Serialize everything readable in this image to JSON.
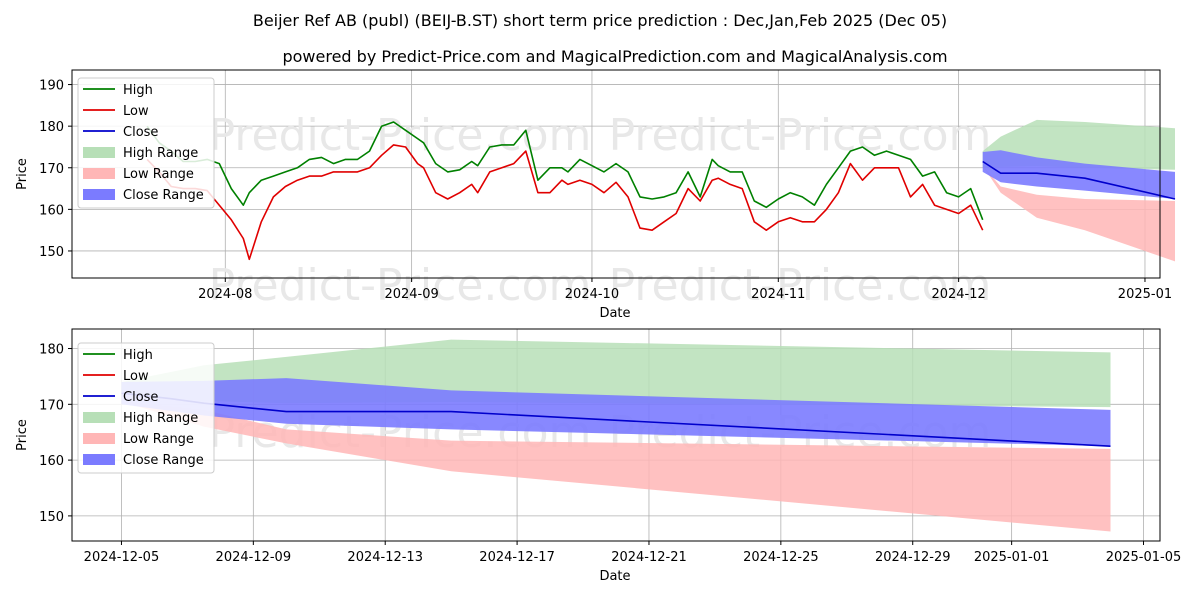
{
  "title": "Beijer Ref AB (publ) (BEIJ-B.ST) short term price prediction : Dec,Jan,Feb 2025 (Dec 05)",
  "subtitle": "powered by Predict-Price.com and MagicalPrediction.com and MagicalAnalysis.com",
  "watermark": "Predict-Price.com",
  "colors": {
    "high": "#008000",
    "low": "#e00000",
    "close": "#0000cc",
    "high_range": "#b7dfb7",
    "low_range": "#ffb6b6",
    "close_range": "#7b7bff"
  },
  "chart_data": [
    {
      "type": "line",
      "title": "Beijer Ref AB (publ) (BEIJ-B.ST) short term price prediction : Dec,Jan,Feb 2025 (Dec 05)",
      "xlabel": "Date",
      "ylabel": "Price",
      "xlim": [
        -25.5,
        155.5
      ],
      "ylim": [
        143.5,
        193.5
      ],
      "x_unit": "days since 2024-08-01",
      "xticks": [
        {
          "x": 0,
          "label": "2024-08"
        },
        {
          "x": 31,
          "label": "2024-09"
        },
        {
          "x": 61,
          "label": "2024-10"
        },
        {
          "x": 92,
          "label": "2024-11"
        },
        {
          "x": 122,
          "label": "2024-12"
        },
        {
          "x": 153,
          "label": "2025-01"
        }
      ],
      "yticks": [
        150,
        160,
        170,
        180,
        190
      ],
      "legend": [
        "High",
        "Low",
        "Close",
        "High Range",
        "Low Range",
        "Close Range"
      ],
      "legend_position": "top-left",
      "series": [
        {
          "name": "High",
          "x": [
            -13,
            -11,
            -9,
            -7,
            -5,
            -3,
            -1,
            1,
            3,
            4,
            6,
            8,
            10,
            12,
            14,
            16,
            18,
            20,
            22,
            24,
            26,
            28,
            30,
            32,
            33,
            35,
            37,
            39,
            41,
            42,
            44,
            46,
            48,
            50,
            52,
            54,
            56,
            57,
            59,
            61,
            63,
            65,
            67,
            69,
            71,
            73,
            75,
            77,
            79,
            81,
            82,
            84,
            86,
            88,
            90,
            92,
            94,
            96,
            98,
            100,
            102,
            104,
            106,
            108,
            110,
            112,
            114,
            116,
            118,
            120,
            122,
            124,
            126
          ],
          "y": [
            180,
            176,
            174,
            171.5,
            171.5,
            172,
            171,
            165,
            161,
            164,
            167,
            168,
            169,
            170,
            172,
            172.5,
            171,
            172,
            172,
            174,
            180,
            181,
            179,
            177,
            176,
            171,
            169,
            169.5,
            171.5,
            170.5,
            175,
            175.5,
            175.5,
            179,
            167,
            170,
            170,
            169,
            172,
            170.5,
            169,
            171,
            169,
            163,
            162.5,
            163,
            164,
            169,
            163,
            172,
            170.5,
            169,
            169,
            162,
            160.5,
            162.5,
            164,
            163,
            161,
            166,
            170,
            174,
            175,
            173,
            174,
            173,
            172,
            168,
            169,
            164,
            163,
            165,
            157.5
          ]
        },
        {
          "name": "Low",
          "x": [
            -13,
            -11,
            -9,
            -7,
            -5,
            -3,
            -1,
            1,
            3,
            4,
            6,
            8,
            10,
            12,
            14,
            16,
            18,
            20,
            22,
            24,
            26,
            28,
            30,
            32,
            33,
            35,
            37,
            39,
            41,
            42,
            44,
            46,
            48,
            50,
            52,
            54,
            56,
            57,
            59,
            61,
            63,
            65,
            67,
            69,
            71,
            73,
            75,
            77,
            79,
            81,
            82,
            84,
            86,
            88,
            90,
            92,
            94,
            96,
            98,
            100,
            102,
            104,
            106,
            108,
            110,
            112,
            114,
            116,
            118,
            120,
            122,
            124,
            126
          ],
          "y": [
            172,
            169,
            165.5,
            165,
            165,
            164.5,
            161,
            157.5,
            153,
            148,
            157,
            163,
            165.5,
            167,
            168,
            168,
            169,
            169,
            169,
            170,
            173,
            175.5,
            175,
            171,
            170,
            164,
            162.5,
            164,
            166,
            164,
            169,
            170,
            171,
            174,
            164,
            164,
            167,
            166,
            167,
            166,
            164,
            166.5,
            163,
            155.5,
            155,
            157,
            159,
            165,
            162,
            167,
            167.5,
            166,
            165,
            157,
            155,
            157,
            158,
            157,
            157,
            160,
            164,
            171,
            167,
            170,
            170,
            170,
            163,
            166,
            161,
            160,
            159,
            161,
            155
          ]
        },
        {
          "name": "Close",
          "x": [
            126,
            129,
            135,
            143,
            158
          ],
          "y": [
            171.5,
            168.7,
            168.7,
            167.5,
            162.5
          ]
        },
        {
          "name": "High Range",
          "x": [
            126,
            129,
            135,
            143,
            158
          ],
          "upper": [
            174,
            177.5,
            181.5,
            181,
            179.5
          ],
          "lower": [
            170,
            170.2,
            170.4,
            170,
            169.5
          ]
        },
        {
          "name": "Low Range",
          "x": [
            126,
            129,
            135,
            143,
            158
          ],
          "upper": [
            170.5,
            165.5,
            163.5,
            162.5,
            162
          ],
          "lower": [
            170.5,
            164,
            158,
            155,
            147.5
          ]
        },
        {
          "name": "Close Range",
          "x": [
            126,
            129,
            135,
            143,
            158
          ],
          "upper": [
            173.8,
            174.2,
            172.5,
            171,
            169
          ],
          "lower": [
            169,
            166.5,
            165.5,
            164.5,
            162.5
          ]
        }
      ]
    },
    {
      "type": "line",
      "xlabel": "Date",
      "ylabel": "Price",
      "xlim": [
        -1.5,
        31.5
      ],
      "ylim": [
        145.5,
        183.5
      ],
      "x_unit": "days since 2024-12-05",
      "xticks": [
        {
          "x": 0,
          "label": "2024-12-05"
        },
        {
          "x": 4,
          "label": "2024-12-09"
        },
        {
          "x": 8,
          "label": "2024-12-13"
        },
        {
          "x": 12,
          "label": "2024-12-17"
        },
        {
          "x": 16,
          "label": "2024-12-21"
        },
        {
          "x": 20,
          "label": "2024-12-25"
        },
        {
          "x": 24,
          "label": "2024-12-29"
        },
        {
          "x": 27,
          "label": "2025-01-01"
        },
        {
          "x": 31,
          "label": "2025-01-05"
        }
      ],
      "yticks": [
        150,
        160,
        170,
        180
      ],
      "legend": [
        "High",
        "Low",
        "Close",
        "High Range",
        "Low Range",
        "Close Range"
      ],
      "legend_position": "top-left",
      "series": [
        {
          "name": "High",
          "x": [],
          "y": []
        },
        {
          "name": "Low",
          "x": [],
          "y": []
        },
        {
          "name": "Close",
          "x": [
            0,
            1.5,
            2.5,
            5,
            10,
            30
          ],
          "y": [
            172,
            171,
            170.2,
            168.7,
            168.7,
            162.5
          ]
        },
        {
          "name": "High Range",
          "x": [
            0,
            2.5,
            5,
            10,
            30
          ],
          "upper": [
            174,
            177,
            178.5,
            181.6,
            179.3
          ],
          "lower": [
            172,
            170.6,
            170.2,
            170.4,
            169.5
          ]
        },
        {
          "name": "Low Range",
          "x": [
            0,
            2.5,
            5,
            10,
            30
          ],
          "upper": [
            170.5,
            169,
            165.5,
            163.5,
            162
          ],
          "lower": [
            170.5,
            166,
            163,
            158,
            147.2
          ]
        },
        {
          "name": "Close Range",
          "x": [
            0,
            2.5,
            5,
            10,
            30
          ],
          "upper": [
            174,
            174.2,
            174.7,
            172.5,
            169
          ],
          "lower": [
            170,
            168,
            166.5,
            165.5,
            162.5
          ]
        }
      ]
    }
  ]
}
